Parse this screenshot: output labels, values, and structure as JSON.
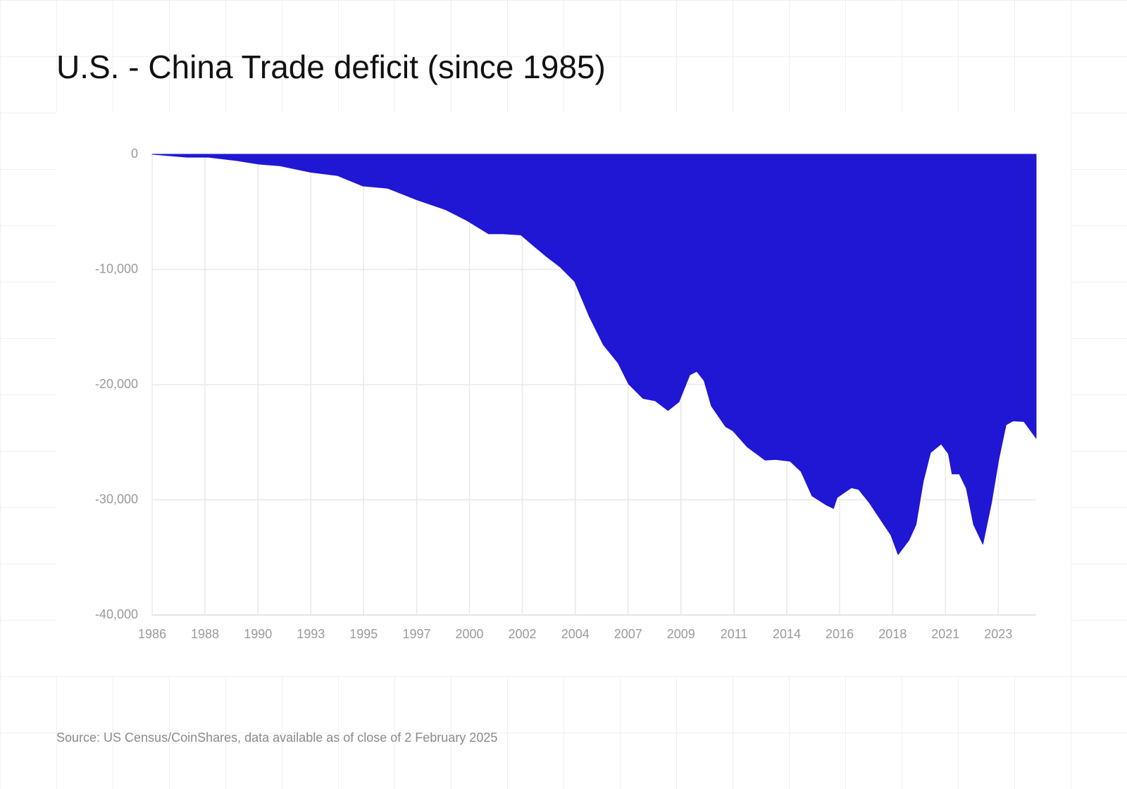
{
  "chart_data": {
    "type": "area",
    "title": "U.S. - China Trade deficit (since 1985)",
    "source": "Source: US Census/CoinShares, data available as of close of 2 February 2025",
    "x": [
      1986.0,
      1987.52,
      1988.47,
      1989.74,
      1990.69,
      1991.64,
      1992.98,
      1994.18,
      1995.29,
      1996.4,
      1997.67,
      1998.94,
      1999.89,
      2000.84,
      2001.47,
      2002.27,
      2002.74,
      2003.38,
      2004.01,
      2004.64,
      2005.28,
      2005.91,
      2006.55,
      2007.02,
      2007.66,
      2008.19,
      2008.76,
      2009.24,
      2009.72,
      2010.03,
      2010.35,
      2010.67,
      2011.3,
      2011.62,
      2012.25,
      2013.04,
      2013.52,
      2014.15,
      2014.63,
      2015.11,
      2015.74,
      2016.06,
      2016.22,
      2016.85,
      2017.17,
      2017.64,
      2018.28,
      2018.59,
      2018.91,
      2019.39,
      2019.7,
      2020.02,
      2020.34,
      2020.81,
      2021.13,
      2021.29,
      2021.61,
      2021.92,
      2022.24,
      2022.65,
      2023.03,
      2023.35,
      2023.67,
      2023.98,
      2024.46,
      2025.0
    ],
    "values": [
      0,
      -250,
      -250,
      -550,
      -850,
      -1000,
      -1550,
      -1850,
      -2750,
      -2950,
      -3950,
      -4800,
      -5750,
      -6900,
      -6900,
      -7000,
      -7800,
      -8850,
      -9800,
      -11050,
      -14050,
      -16550,
      -18100,
      -19950,
      -21200,
      -21400,
      -22250,
      -21500,
      -19150,
      -18850,
      -19650,
      -21850,
      -23650,
      -24000,
      -25400,
      -26550,
      -26500,
      -26650,
      -27550,
      -29650,
      -30450,
      -30750,
      -29800,
      -28950,
      -29100,
      -30250,
      -32150,
      -33050,
      -34750,
      -33500,
      -32150,
      -28400,
      -25900,
      -25150,
      -26000,
      -27750,
      -27750,
      -29000,
      -32150,
      -33850,
      -30250,
      -26500,
      -23500,
      -23150,
      -23200,
      -24650
    ],
    "color": "#1f17d4",
    "xlim": [
      1986,
      2025
    ],
    "xticks": [
      1986,
      {
        "value": 1988.33,
        "label": "1988"
      },
      {
        "value": 1990.67,
        "label": "1990"
      },
      1993,
      {
        "value": 1995.33,
        "label": "1995"
      },
      {
        "value": 1997.67,
        "label": "1997"
      },
      2000,
      {
        "value": 2002.33,
        "label": "2002"
      },
      {
        "value": 2004.67,
        "label": "2004"
      },
      2007,
      {
        "value": 2009.33,
        "label": "2009"
      },
      {
        "value": 2011.67,
        "label": "2011"
      },
      2014,
      {
        "value": 2016.33,
        "label": "2016"
      },
      {
        "value": 2018.67,
        "label": "2018"
      },
      2021,
      {
        "value": 2023.33,
        "label": "2023"
      }
    ],
    "ylim": [
      -40000,
      0
    ],
    "yticks": [
      {
        "value": -40000,
        "label": "-40,000"
      },
      {
        "value": -30000,
        "label": "-30,000"
      },
      {
        "value": -20000,
        "label": "-20,000"
      },
      {
        "value": -10000,
        "label": "-10,000"
      },
      0
    ],
    "grid": true
  }
}
